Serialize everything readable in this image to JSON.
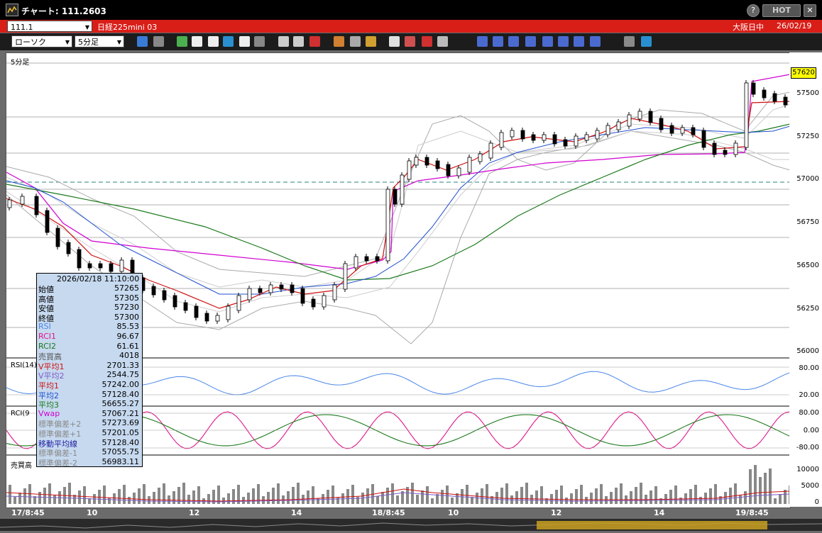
{
  "window": {
    "title": "チャート: 111.2603",
    "hot_label": "HOT",
    "help_label": "?",
    "close_label": "✕"
  },
  "infobar": {
    "code": "111.1",
    "name": "日経225mini 03",
    "session": "大阪日中",
    "date": "26/02/19"
  },
  "toolbar": {
    "chart_type": "ローソク",
    "interval": "5分足",
    "buttons": [
      "zoom",
      "cross",
      "line",
      "draw",
      "pointer",
      "refresh",
      "memo",
      "delete",
      "box1",
      "box2",
      "ALL",
      "palette",
      "tool",
      "color",
      "order",
      "alert",
      "plus",
      "n",
      "MA",
      "BB",
      "MAE",
      "HL",
      "ATR",
      "RCI",
      "PVT",
      "win",
      "Log",
      "exit"
    ]
  },
  "panels": {
    "main_label": "5分足",
    "rsi_label": "RSI(14)",
    "rci_label": "RCI(9",
    "volume_label": "売買高"
  },
  "price_badge": "57620",
  "y_axis": {
    "price": [
      "57500",
      "57250",
      "57000",
      "56750",
      "56500",
      "56250",
      "56000"
    ],
    "rsi": [
      "80.00",
      "20.00"
    ],
    "rci": [
      "80.00",
      "0.00",
      "-80.00"
    ],
    "volume": [
      "10000",
      "5000",
      "0"
    ]
  },
  "x_axis": [
    "17/8:45",
    "10",
    "12",
    "14",
    "18/8:45",
    "10",
    "12",
    "14",
    "19/8:45"
  ],
  "tooltip": {
    "datetime": "2026/02/18  11:10:00",
    "rows": [
      {
        "label": "始値",
        "value": "57265",
        "color": "#000000"
      },
      {
        "label": "高値",
        "value": "57305",
        "color": "#000000"
      },
      {
        "label": "安値",
        "value": "57230",
        "color": "#000000"
      },
      {
        "label": "終値",
        "value": "57300",
        "color": "#000000"
      },
      {
        "label": "RSI",
        "value": "85.53",
        "color": "#4a86e8"
      },
      {
        "label": "RCI1",
        "value": "96.67",
        "color": "#e0148a"
      },
      {
        "label": "RCI2",
        "value": "61.61",
        "color": "#1b7a1b"
      },
      {
        "label": "売買高",
        "value": "4018",
        "color": "#555555"
      },
      {
        "label": "V平均1",
        "value": "2701.33",
        "color": "#d01010"
      },
      {
        "label": "V平均2",
        "value": "2544.75",
        "color": "#7a5cc8"
      },
      {
        "label": "平均1",
        "value": "57242.00",
        "color": "#d01010"
      },
      {
        "label": "平均2",
        "value": "57128.40",
        "color": "#1f4fd0"
      },
      {
        "label": "平均3",
        "value": "56655.27",
        "color": "#1b7a1b"
      },
      {
        "label": "Vwap",
        "value": "57067.21",
        "color": "#d000d0"
      },
      {
        "label": "標準偏差+2",
        "value": "57273.69",
        "color": "#8a8a8a"
      },
      {
        "label": "標準偏差+1",
        "value": "57201.05",
        "color": "#8a8a8a"
      },
      {
        "label": "移動平均線",
        "value": "57128.40",
        "color": "#1f1f9f"
      },
      {
        "label": "標準偏差-1",
        "value": "57055.75",
        "color": "#8a8a8a"
      },
      {
        "label": "標準偏差-2",
        "value": "56983.11",
        "color": "#8a8a8a"
      }
    ]
  }
}
